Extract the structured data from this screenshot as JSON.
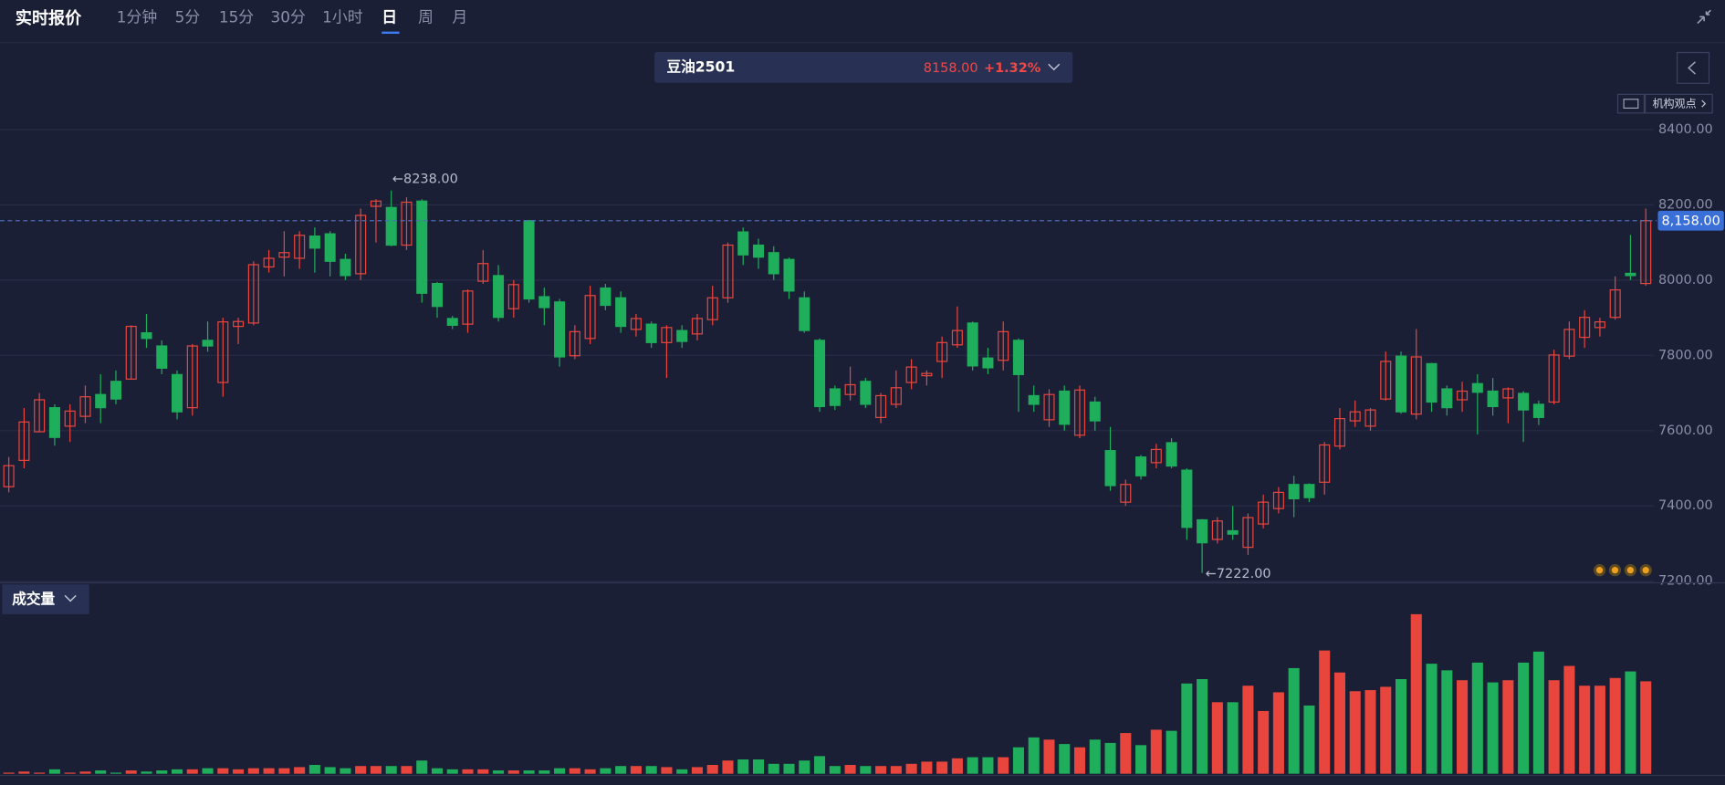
{
  "header": {
    "title": "实时报价",
    "tabs": [
      "1分钟",
      "5分",
      "15分",
      "30分",
      "1小时",
      "日",
      "周",
      "月"
    ],
    "active_tab": 5
  },
  "quote": {
    "name": "豆油2501",
    "price": "8158.00",
    "change": "+1.32%"
  },
  "button": "机构观点",
  "volume_label": "成交量",
  "chart_data": {
    "type": "candlestick",
    "up_color": "#e8463d",
    "down_color": "#1fae5b",
    "grid": true,
    "ylim": [
      7200,
      8460
    ],
    "yticks": [
      {
        "value": 7200,
        "label": "7200.00"
      },
      {
        "value": 7400,
        "label": "7400.00"
      },
      {
        "value": 7600,
        "label": "7600.00"
      },
      {
        "value": 7800,
        "label": "7800.00"
      },
      {
        "value": 8000,
        "label": "8000.00"
      },
      {
        "value": 8200,
        "label": "8200.00"
      },
      {
        "value": 8400,
        "label": "8400.00"
      }
    ],
    "last_price": {
      "value": 8158,
      "label": "8,158.00"
    },
    "high_label": "←8238.00",
    "low_label": "←7222.00",
    "open": [
      7451,
      7521,
      7597,
      7661,
      7612,
      7638,
      7696,
      7731,
      7737,
      7860,
      7825,
      7749,
      7661,
      7840,
      7728,
      7877,
      7886,
      8035,
      8061,
      8058,
      8117,
      8123,
      8055,
      8017,
      8196,
      8193,
      8093,
      8210,
      7991,
      7898,
      7883,
      7997,
      8012,
      7924,
      8158,
      7956,
      7942,
      7799,
      7845,
      7979,
      7953,
      7869,
      7883,
      7834,
      7866,
      7857,
      7895,
      7953,
      8128,
      8093,
      8073,
      8055,
      7953,
      7840,
      7711,
      7696,
      7731,
      7635,
      7670,
      7728,
      7746,
      7784,
      7828,
      7886,
      7793,
      7787,
      7840,
      7693,
      7629,
      7705,
      7588,
      7676,
      7547,
      7410,
      7530,
      7515,
      7568,
      7495,
      7363,
      7311,
      7334,
      7290,
      7352,
      7393,
      7457,
      7457,
      7463,
      7559,
      7626,
      7612,
      7684,
      7798,
      7644,
      7778,
      7711,
      7682,
      7725,
      7705,
      7687,
      7699,
      7670,
      7676,
      7798,
      7848,
      7874,
      7901,
      8018,
      7991
    ],
    "high": [
      7530,
      7660,
      7700,
      7670,
      7670,
      7720,
      7750,
      7760,
      7880,
      7910,
      7840,
      7760,
      7830,
      7890,
      7900,
      7900,
      8050,
      8080,
      8130,
      8130,
      8140,
      8130,
      8070,
      8190,
      8215,
      8238,
      8220,
      8215,
      7995,
      7905,
      7975,
      8080,
      8040,
      8000,
      8160,
      7980,
      7950,
      7880,
      7985,
      7990,
      7970,
      7910,
      7890,
      7880,
      7880,
      7910,
      7985,
      8100,
      8140,
      8110,
      8090,
      8060,
      7970,
      7845,
      7720,
      7770,
      7740,
      7700,
      7760,
      7790,
      7760,
      7850,
      7930,
      7890,
      7820,
      7890,
      7845,
      7720,
      7710,
      7720,
      7720,
      7690,
      7610,
      7470,
      7535,
      7565,
      7580,
      7500,
      7365,
      7370,
      7400,
      7380,
      7430,
      7450,
      7480,
      7460,
      7570,
      7660,
      7680,
      7660,
      7810,
      7810,
      7870,
      7780,
      7720,
      7730,
      7750,
      7740,
      7715,
      7705,
      7680,
      7815,
      7890,
      7920,
      7900,
      8010,
      8120,
      8190
    ],
    "low": [
      7436,
      7500,
      7597,
      7560,
      7570,
      7620,
      7620,
      7670,
      7737,
      7820,
      7750,
      7630,
      7640,
      7810,
      7690,
      7830,
      7880,
      8020,
      8010,
      8030,
      8020,
      8010,
      8000,
      8000,
      8100,
      8090,
      8080,
      7940,
      7900,
      7870,
      7860,
      7990,
      7890,
      7900,
      7940,
      7880,
      7770,
      7790,
      7830,
      7920,
      7860,
      7850,
      7820,
      7740,
      7820,
      7840,
      7880,
      7940,
      8040,
      8030,
      8000,
      7950,
      7860,
      7650,
      7655,
      7680,
      7660,
      7620,
      7660,
      7710,
      7720,
      7740,
      7820,
      7760,
      7750,
      7760,
      7650,
      7650,
      7610,
      7600,
      7580,
      7600,
      7440,
      7400,
      7470,
      7500,
      7500,
      7310,
      7222,
      7300,
      7310,
      7270,
      7340,
      7380,
      7370,
      7410,
      7430,
      7550,
      7610,
      7600,
      7680,
      7645,
      7630,
      7650,
      7640,
      7650,
      7590,
      7640,
      7620,
      7570,
      7615,
      7670,
      7790,
      7820,
      7850,
      7895,
      8000,
      7985
    ],
    "close": [
      7507,
      7623,
      7682,
      7582,
      7652,
      7690,
      7661,
      7684,
      7877,
      7845,
      7766,
      7650,
      7825,
      7825,
      7889,
      7890,
      8041,
      8058,
      8073,
      8119,
      8085,
      8050,
      8012,
      8172,
      8210,
      8093,
      8207,
      7965,
      7930,
      7880,
      7971,
      8044,
      7901,
      7988,
      7950,
      7927,
      7796,
      7863,
      7959,
      7933,
      7877,
      7898,
      7834,
      7874,
      7837,
      7898,
      7953,
      8093,
      8067,
      8061,
      8017,
      7971,
      7866,
      7664,
      7667,
      7722,
      7670,
      7693,
      7714,
      7769,
      7752,
      7834,
      7866,
      7772,
      7767,
      7863,
      7749,
      7670,
      7696,
      7617,
      7708,
      7626,
      7454,
      7457,
      7480,
      7550,
      7506,
      7343,
      7302,
      7360,
      7325,
      7369,
      7410,
      7436,
      7419,
      7422,
      7562,
      7632,
      7650,
      7655,
      7784,
      7650,
      7796,
      7676,
      7661,
      7705,
      7702,
      7664,
      7711,
      7655,
      7635,
      7801,
      7869,
      7901,
      7889,
      7974,
      8012,
      8158
    ],
    "volume": [
      1,
      2,
      1,
      4,
      1,
      2,
      3,
      1,
      3,
      2,
      3,
      4,
      4,
      5,
      5,
      4,
      5,
      5,
      5,
      6,
      8,
      6,
      5,
      7,
      7,
      7,
      7,
      12,
      5,
      4,
      4,
      4,
      3,
      3,
      3,
      3,
      5,
      5,
      4,
      5,
      7,
      7,
      7,
      6,
      4,
      6,
      8,
      12,
      13,
      13,
      9,
      9,
      12,
      16,
      7,
      8,
      7,
      7,
      7,
      9,
      11,
      11,
      14,
      15,
      15,
      15,
      24,
      33,
      31,
      27,
      24,
      31,
      28,
      37,
      26,
      40,
      39,
      82,
      86,
      65,
      65,
      80,
      57,
      74,
      96,
      62,
      112,
      92,
      75,
      76,
      79,
      86,
      145,
      100,
      94,
      85,
      101,
      83,
      85,
      101,
      111,
      85,
      98,
      80,
      80,
      87,
      93,
      84
    ]
  }
}
